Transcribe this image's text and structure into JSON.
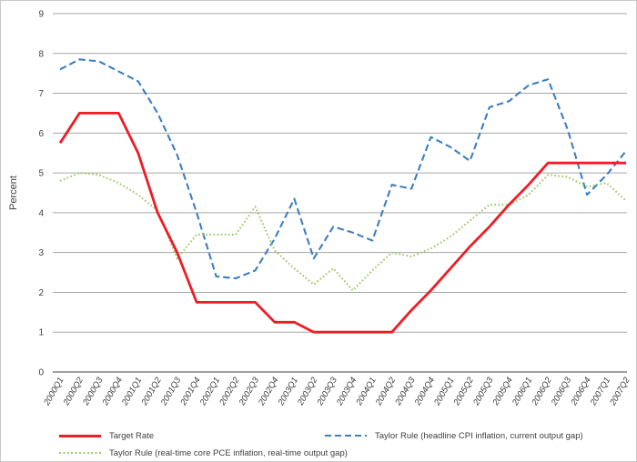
{
  "chart_data": {
    "type": "line",
    "title": "",
    "xlabel": "",
    "ylabel": "Percent",
    "ylim": [
      0,
      9
    ],
    "yticks": [
      0,
      1,
      2,
      3,
      4,
      5,
      6,
      7,
      8,
      9
    ],
    "grid": "horizontal",
    "legend_position": "bottom",
    "categories": [
      "2000Q1",
      "2000Q2",
      "2000Q3",
      "2000Q4",
      "2001Q1",
      "2001Q2",
      "2001Q3",
      "2001Q4",
      "2002Q1",
      "2002Q2",
      "2002Q3",
      "2002Q4",
      "2003Q1",
      "2003Q2",
      "2003Q3",
      "2003Q4",
      "2004Q1",
      "2004Q2",
      "2004Q3",
      "2004Q4",
      "2005Q1",
      "2005Q2",
      "2005Q3",
      "2005Q4",
      "2006Q1",
      "2006Q2",
      "2006Q3",
      "2006Q4",
      "2007Q1",
      "2007Q2"
    ],
    "series": [
      {
        "name": "Target Rate",
        "color": "#ee1c25",
        "style": "solid",
        "values": [
          5.75,
          6.5,
          6.5,
          6.5,
          5.5,
          4.0,
          3.0,
          1.75,
          1.75,
          1.75,
          1.75,
          1.25,
          1.25,
          1.0,
          1.0,
          1.0,
          1.0,
          1.0,
          1.55,
          2.05,
          2.6,
          3.15,
          3.65,
          4.2,
          4.7,
          5.25,
          5.25,
          5.25,
          5.25,
          5.25
        ]
      },
      {
        "name": "Taylor Rule (headline CPI inflation, current output gap)",
        "color": "#3d7ec2",
        "style": "dashed",
        "values": [
          7.6,
          7.85,
          7.8,
          7.55,
          7.3,
          6.5,
          5.45,
          4.0,
          2.4,
          2.35,
          2.55,
          3.35,
          4.35,
          2.85,
          3.65,
          3.5,
          3.3,
          4.7,
          4.6,
          5.9,
          5.65,
          5.3,
          6.65,
          6.8,
          7.2,
          7.35,
          6.1,
          4.45,
          4.95,
          5.55
        ]
      },
      {
        "name": "Taylor Rule (real-time core PCE inflation, real-time output gap)",
        "color": "#9fc968",
        "style": "dotted",
        "values": [
          4.8,
          5.0,
          4.95,
          4.75,
          4.45,
          4.05,
          2.85,
          3.45,
          3.45,
          3.45,
          4.15,
          3.05,
          2.6,
          2.2,
          2.6,
          2.05,
          2.55,
          3.0,
          2.9,
          3.1,
          3.4,
          3.8,
          4.2,
          4.2,
          4.45,
          4.95,
          4.9,
          4.65,
          4.75,
          4.3
        ]
      }
    ],
    "axis_colors": {
      "gridline": "#a6a6a6",
      "zero_axis": "#808080",
      "tick_text": "#3f3f3f"
    }
  }
}
